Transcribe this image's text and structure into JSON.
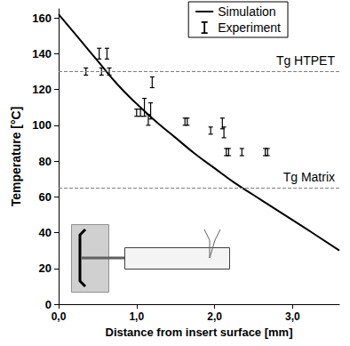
{
  "chart_data": {
    "type": "line",
    "x_label": "Distance from insert surface [mm]",
    "y_label": "Temperature [°C]",
    "xlim": [
      0,
      3.6
    ],
    "xticks": [
      {
        "value": 0,
        "label": "0,0"
      },
      {
        "value": 1,
        "label": "1,0"
      },
      {
        "value": 2,
        "label": "2,0"
      },
      {
        "value": 3,
        "label": "3,0"
      }
    ],
    "ylim": [
      0,
      165
    ],
    "yticks": [
      0,
      20,
      40,
      60,
      80,
      100,
      120,
      140,
      160
    ],
    "grid": false,
    "legend": "top-right",
    "series": [
      {
        "name": "Simulation",
        "type": "line",
        "color": "#000000",
        "line_style": "solid",
        "x": [
          0,
          0.25,
          0.5,
          0.75,
          1.0,
          1.25,
          1.5,
          1.75,
          2.0,
          2.25,
          2.5,
          2.75,
          3.0,
          3.25,
          3.6
        ],
        "values": [
          162,
          149,
          136,
          123,
          112,
          102,
          93,
          84,
          76,
          68,
          61,
          54,
          47,
          40,
          30
        ]
      },
      {
        "name": "Experiment",
        "type": "errorbar",
        "color": "#000000",
        "marker": "I",
        "x": [
          0.35,
          0.52,
          0.62,
          0.55,
          0.65,
          1.0,
          1.05,
          1.1,
          1.15,
          1.18,
          1.2,
          1.62,
          1.65,
          1.95,
          2.1,
          2.12,
          2.15,
          2.18,
          2.35,
          2.65,
          2.68
        ],
        "values": [
          130,
          140,
          140,
          130,
          130,
          107,
          107,
          110,
          103,
          108,
          124,
          102,
          102,
          97,
          101,
          96,
          85,
          85,
          85,
          85,
          85
        ],
        "error": [
          2,
          3,
          3,
          2,
          2,
          2,
          2,
          5,
          3,
          4.5,
          3,
          2,
          2,
          2,
          3,
          3,
          2,
          2,
          2,
          2,
          2
        ]
      }
    ],
    "reference_lines": [
      {
        "value": 130,
        "label": "Tg HTPET",
        "color": "#808080",
        "line_style": "dashed"
      },
      {
        "value": 65,
        "label": "Tg Matrix",
        "color": "#808080",
        "line_style": "dashed"
      }
    ]
  }
}
